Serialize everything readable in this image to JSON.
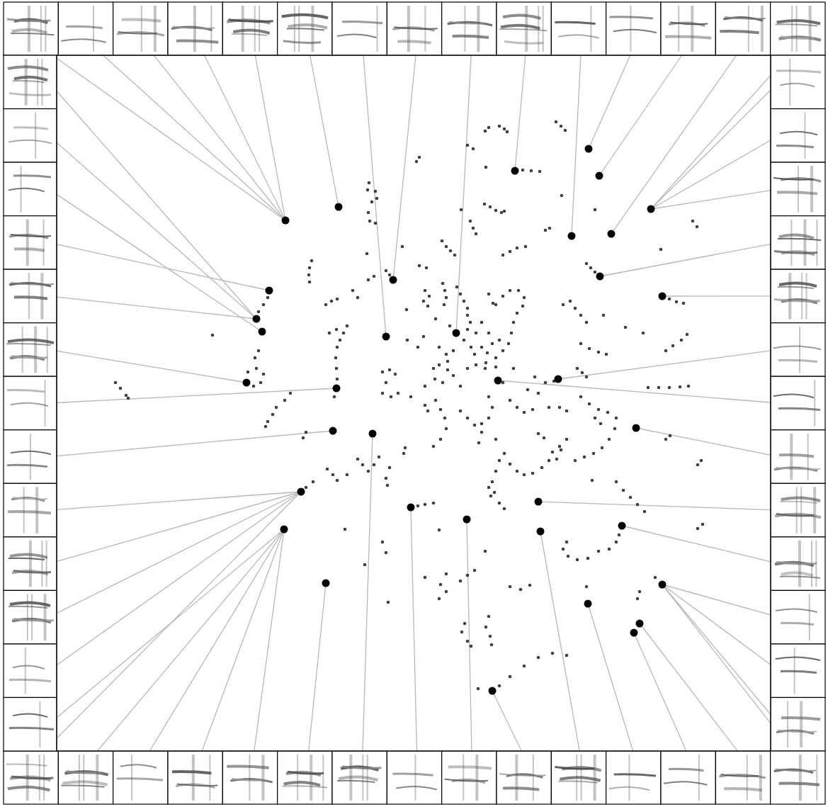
{
  "chart_data": {
    "type": "scatter",
    "xlim": [
      80,
      1088
    ],
    "ylim": [
      1060,
      78
    ],
    "tick_labels": false,
    "grid": false,
    "series": [
      {
        "color": "#111111",
        "marker": "circle",
        "x": [
          660,
          668,
          685,
          690,
          705,
          712,
          716,
          785,
          792,
          798,
          588,
          592,
          727,
          738,
          750,
          762,
          686,
          521,
          519,
          530,
          532,
          525,
          520,
          522,
          530,
          684,
          692,
          700,
          708,
          712,
          793,
          664,
          668,
          672,
          651,
          978,
          984,
          770,
          776,
          840,
          624,
          630,
          636,
          642,
          710,
          720,
          730,
          742,
          568,
          518,
          933,
          440,
          437,
          436,
          437,
          828,
          834,
          840,
          592,
          602,
          545,
          550,
          520,
          528,
          460,
          468,
          476,
          498,
          505,
          378,
          372,
          365,
          945,
          955,
          965,
          574,
          600,
          606,
          598,
          604,
          625,
          628,
          630,
          627,
          645,
          650,
          655,
          660,
          664,
          660,
          700,
          710,
          720,
          732,
          740,
          738,
          730,
          725,
          722,
          718,
          690,
          696,
          795,
          805,
          812,
          820,
          828,
          852,
          883,
          465,
          475,
          490,
          485,
          480,
          476,
          474,
          475,
          476,
          472,
          300,
          655,
          665,
          670,
          680,
          688,
          695,
          700,
          710,
          620,
          630,
          640,
          632,
          575,
          590,
          598,
          820,
          832,
          845,
          856,
          940,
          950,
          962,
          970,
          908,
          350,
          358,
          368,
          372,
          362,
          360,
          365,
          540,
          550,
          558,
          545,
          540,
          552,
          562,
          612,
          620,
          632,
          640,
          625,
          614,
          660,
          672,
          686,
          700,
          782,
          770,
          755,
          815,
          822,
          828,
          915,
          930,
          945,
          960,
          972,
          163,
          170,
          178,
          181,
          410,
          402,
          390,
          385,
          378,
          375,
          432,
          428,
          572,
          570,
          600,
          604,
          615,
          622,
          628,
          630,
          622,
          612,
          650,
          660,
          670,
          680,
          690,
          695,
          690,
          680,
          676,
          720,
          730,
          740,
          752,
          775,
          790,
          800,
          820,
          832,
          845,
          858,
          870,
          868,
          860,
          850,
          838,
          825,
          812,
          840,
          848,
          940,
          946,
          990,
          985,
          700,
          712,
          720,
          730,
          740,
          752,
          765,
          775,
          780,
          790,
          705,
          700,
          695,
          698,
          705,
          712,
          760,
          768,
          800,
          792,
          786,
          505,
          512,
          520,
          528,
          535,
          550,
          545,
          547,
          462,
          470,
          476,
          432,
          442,
          490,
          690,
          693,
          590,
          600,
          612,
          870,
          880,
          890,
          900,
          910,
          874,
          870,
          860,
          836,
          992,
          985,
          620,
          540,
          545,
          800,
          795,
          802,
          815,
          830,
          845,
          685,
          487,
          515,
          600,
          630,
          622,
          650,
          660,
          670,
          630,
          620,
          720,
          735,
          748,
          828,
          925,
          548,
          656,
          652,
          660,
          665,
          690,
          686,
          692,
          694,
          675,
          705,
          720,
          740,
          760,
          780,
          800,
          903,
          900,
          680,
          672,
          690,
          705,
          660,
          615,
          635,
          685,
          650,
          710,
          725,
          745,
          760,
          600,
          580
        ],
        "values": [
          205,
          210,
          185,
          180,
          178,
          182,
          186,
          172,
          178,
          184,
          228,
          222,
          241,
          240,
          241,
          242,
          236,
          258,
          268,
          270,
          280,
          285,
          300,
          312,
          315,
          288,
          292,
          297,
          300,
          298,
          276,
          312,
          322,
          330,
          296,
          312,
          320,
          325,
          322,
          296,
          340,
          348,
          354,
          360,
          360,
          355,
          350,
          348,
          348,
          358,
          352,
          368,
          378,
          388,
          398,
          372,
          378,
          384,
          375,
          378,
          382,
          388,
          395,
          390,
          430,
          425,
          422,
          410,
          420,
          420,
          430,
          440,
          422,
          426,
          428,
          437,
          410,
          418,
          425,
          432,
          400,
          410,
          420,
          430,
          405,
          415,
          425,
          445,
          455,
          465,
          430,
          418,
          410,
          410,
          420,
          432,
          442,
          455,
          470,
          485,
          415,
          428,
          430,
          425,
          435,
          445,
          455,
          445,
          462,
          470,
          465,
          460,
          470,
          480,
          490,
          505,
          520,
          535,
          560,
          473,
          480,
          490,
          500,
          490,
          498,
          485,
          505,
          495,
          490,
          500,
          495,
          510,
          480,
          490,
          475,
          485,
          492,
          497,
          500,
          495,
          488,
          480,
          472,
          470,
          525,
          545,
          540,
          528,
          520,
          505,
          495,
          525,
          522,
          528,
          540,
          555,
          560,
          555,
          520,
          515,
          522,
          530,
          540,
          535,
          520,
          515,
          512,
          518,
          538,
          540,
          532,
          520,
          526,
          532,
          547,
          547,
          547,
          546,
          545,
          540,
          548,
          558,
          562,
          555,
          565,
          575,
          585,
          595,
          602,
          610,
          618,
          632,
          640,
          572,
          580,
          565,
          578,
          590,
          605,
          620,
          630,
          580,
          590,
          600,
          598,
          560,
          575,
          590,
          610,
          625,
          565,
          575,
          582,
          578,
          575,
          575,
          580,
          560,
          570,
          578,
          582,
          590,
          605,
          620,
          632,
          640,
          645,
          650,
          590,
          598,
          620,
          615,
          650,
          656,
          620,
          640,
          655,
          665,
          670,
          668,
          660,
          650,
          638,
          630,
          650,
          665,
          680,
          695,
          710,
          718,
          612,
          618,
          620,
          635,
          648,
          648,
          656,
          665,
          656,
          645,
          660,
          675,
          685,
          662,
          670,
          678,
          688,
          680,
          670,
          688,
          700,
          714,
          712,
          710,
          680,
          692,
          702,
          712,
          722,
          755,
          765,
          775,
          678,
          740,
          746,
          748,
          765,
          780,
          765,
          775,
          785,
          790,
          788,
          778,
          778,
          747,
          797,
          815,
          810,
          825,
          820,
          812,
          805,
          835,
          845,
          828,
          832,
          826,
          828,
          815,
          850,
          880,
          892,
          905,
          912,
          870,
          885,
          898,
          910,
          972,
          968,
          955,
          940,
          928,
          922,
          925,
          835,
          845,
          455,
          470,
          470,
          480,
          435,
          450,
          460,
          520,
          545,
          540,
          520,
          550,
          555,
          545,
          560
        ]
      },
      {
        "color": "#000000",
        "marker": "circle",
        "x": [
          403,
          478,
          545,
          555,
          644,
          727,
          807,
          831,
          846,
          863,
          919,
          847,
          935,
          788,
          703,
          898,
          760,
          878,
          935,
          425,
          401,
          460,
          526,
          580,
          659,
          695,
          763,
          830,
          895,
          903,
          362,
          370,
          380,
          348,
          475,
          470
        ],
        "values": [
          311,
          292,
          475,
          395,
          470,
          241,
          333,
          210,
          248,
          330,
          295,
          390,
          418,
          535,
          537,
          604,
          708,
          742,
          825,
          694,
          747,
          823,
          612,
          716,
          733,
          975,
          750,
          852,
          893,
          880,
          450,
          468,
          410,
          540,
          548,
          608
        ]
      }
    ],
    "links": [
      0,
      0,
      0,
      0,
      0,
      1,
      2,
      3,
      4,
      5,
      6,
      7,
      8,
      9,
      10,
      10,
      10,
      10,
      11,
      12,
      13,
      14,
      15,
      16,
      17,
      18,
      18,
      18,
      19,
      20,
      20,
      20,
      20,
      21,
      22,
      23,
      24,
      25,
      26,
      27,
      28,
      29,
      18,
      30,
      30,
      31,
      32,
      30,
      33,
      34,
      35,
      19,
      19,
      19,
      19,
      20
    ]
  }
}
